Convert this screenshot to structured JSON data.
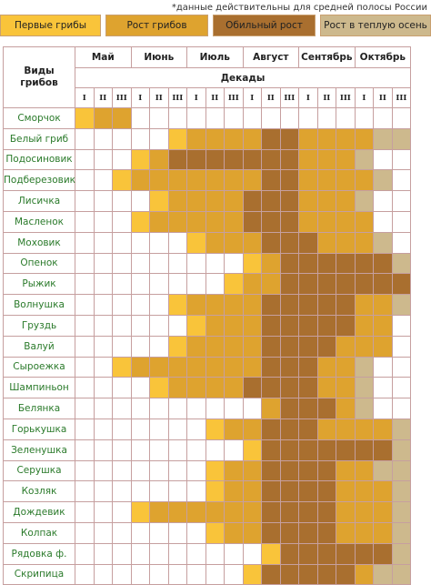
{
  "note": "*данные действительны для средней полосы России",
  "legend": [
    {
      "label": "Первые грибы",
      "color": "#f9c43a"
    },
    {
      "label": "Рост грибов",
      "color": "#dea32f"
    },
    {
      "label": "Обильный рост",
      "color": "#a96f2f"
    },
    {
      "label": "Рост в теплую осень",
      "color": "#cdb98d"
    }
  ],
  "table": {
    "corner_label": "Виды\nгрибов",
    "decades_label": "Декады",
    "months": [
      "Май",
      "Июнь",
      "Июль",
      "Август",
      "Сентябрь",
      "Октябрь"
    ],
    "decades": [
      "I",
      "II",
      "III"
    ],
    "rows": [
      {
        "name": "Сморчок",
        "cells": [
          1,
          2,
          2,
          0,
          0,
          0,
          0,
          0,
          0,
          0,
          0,
          0,
          0,
          0,
          0,
          0,
          0,
          0
        ]
      },
      {
        "name": "Белый гриб",
        "cells": [
          0,
          0,
          0,
          0,
          0,
          1,
          2,
          2,
          2,
          2,
          3,
          3,
          2,
          2,
          2,
          2,
          4,
          4
        ]
      },
      {
        "name": "Подосиновик",
        "cells": [
          0,
          0,
          0,
          1,
          2,
          3,
          3,
          3,
          3,
          3,
          3,
          3,
          2,
          2,
          2,
          4,
          0,
          0
        ]
      },
      {
        "name": "Подберезовик",
        "cells": [
          0,
          0,
          1,
          2,
          2,
          2,
          2,
          2,
          2,
          2,
          3,
          3,
          2,
          2,
          2,
          2,
          4,
          0
        ]
      },
      {
        "name": "Лисичка",
        "cells": [
          0,
          0,
          0,
          0,
          1,
          2,
          2,
          2,
          2,
          3,
          3,
          3,
          2,
          2,
          2,
          4,
          0,
          0
        ]
      },
      {
        "name": "Масленок",
        "cells": [
          0,
          0,
          0,
          1,
          2,
          2,
          2,
          2,
          2,
          3,
          3,
          3,
          2,
          2,
          2,
          2,
          0,
          0
        ]
      },
      {
        "name": "Моховик",
        "cells": [
          0,
          0,
          0,
          0,
          0,
          0,
          1,
          2,
          2,
          2,
          3,
          3,
          3,
          2,
          2,
          2,
          4,
          0
        ]
      },
      {
        "name": "Опенок",
        "cells": [
          0,
          0,
          0,
          0,
          0,
          0,
          0,
          0,
          0,
          1,
          2,
          3,
          3,
          3,
          3,
          3,
          3,
          4
        ]
      },
      {
        "name": "Рыжик",
        "cells": [
          0,
          0,
          0,
          0,
          0,
          0,
          0,
          0,
          1,
          2,
          2,
          3,
          3,
          3,
          3,
          3,
          3,
          3
        ]
      },
      {
        "name": "Волнушка",
        "cells": [
          0,
          0,
          0,
          0,
          0,
          1,
          2,
          2,
          2,
          2,
          3,
          3,
          3,
          3,
          3,
          2,
          2,
          4
        ]
      },
      {
        "name": "Груздь",
        "cells": [
          0,
          0,
          0,
          0,
          0,
          0,
          1,
          2,
          2,
          2,
          3,
          3,
          3,
          3,
          3,
          2,
          2,
          0
        ]
      },
      {
        "name": "Валуй",
        "cells": [
          0,
          0,
          0,
          0,
          0,
          1,
          2,
          2,
          2,
          2,
          3,
          3,
          3,
          3,
          2,
          2,
          2,
          0
        ]
      },
      {
        "name": "Сыроежка",
        "cells": [
          0,
          0,
          1,
          2,
          2,
          2,
          2,
          2,
          2,
          2,
          3,
          3,
          3,
          2,
          2,
          4,
          0,
          0
        ]
      },
      {
        "name": "Шампиньон",
        "cells": [
          0,
          0,
          0,
          0,
          1,
          2,
          2,
          2,
          2,
          3,
          3,
          3,
          3,
          2,
          2,
          4,
          0,
          0
        ]
      },
      {
        "name": "Белянка",
        "cells": [
          0,
          0,
          0,
          0,
          0,
          0,
          0,
          0,
          0,
          0,
          2,
          3,
          3,
          3,
          2,
          4,
          0,
          0
        ]
      },
      {
        "name": "Горькушка",
        "cells": [
          0,
          0,
          0,
          0,
          0,
          0,
          0,
          1,
          2,
          2,
          3,
          3,
          3,
          2,
          2,
          2,
          2,
          4
        ]
      },
      {
        "name": "Зеленушка",
        "cells": [
          0,
          0,
          0,
          0,
          0,
          0,
          0,
          0,
          0,
          1,
          3,
          3,
          3,
          3,
          3,
          3,
          3,
          4
        ]
      },
      {
        "name": "Серушка",
        "cells": [
          0,
          0,
          0,
          0,
          0,
          0,
          0,
          1,
          2,
          2,
          3,
          3,
          3,
          3,
          2,
          2,
          4,
          4
        ]
      },
      {
        "name": "Козляк",
        "cells": [
          0,
          0,
          0,
          0,
          0,
          0,
          0,
          1,
          2,
          2,
          3,
          3,
          3,
          3,
          2,
          2,
          2,
          4
        ]
      },
      {
        "name": "Дождевик",
        "cells": [
          0,
          0,
          0,
          1,
          2,
          2,
          2,
          2,
          2,
          2,
          3,
          3,
          3,
          3,
          2,
          2,
          2,
          4
        ]
      },
      {
        "name": "Колпак",
        "cells": [
          0,
          0,
          0,
          0,
          0,
          0,
          0,
          1,
          2,
          2,
          3,
          3,
          3,
          3,
          2,
          2,
          2,
          4
        ]
      },
      {
        "name": "Рядовка ф.",
        "cells": [
          0,
          0,
          0,
          0,
          0,
          0,
          0,
          0,
          0,
          0,
          1,
          3,
          3,
          3,
          3,
          3,
          3,
          4
        ]
      },
      {
        "name": "Скрипица",
        "cells": [
          0,
          0,
          0,
          0,
          0,
          0,
          0,
          0,
          0,
          1,
          3,
          3,
          3,
          3,
          3,
          2,
          4,
          4
        ]
      }
    ]
  }
}
